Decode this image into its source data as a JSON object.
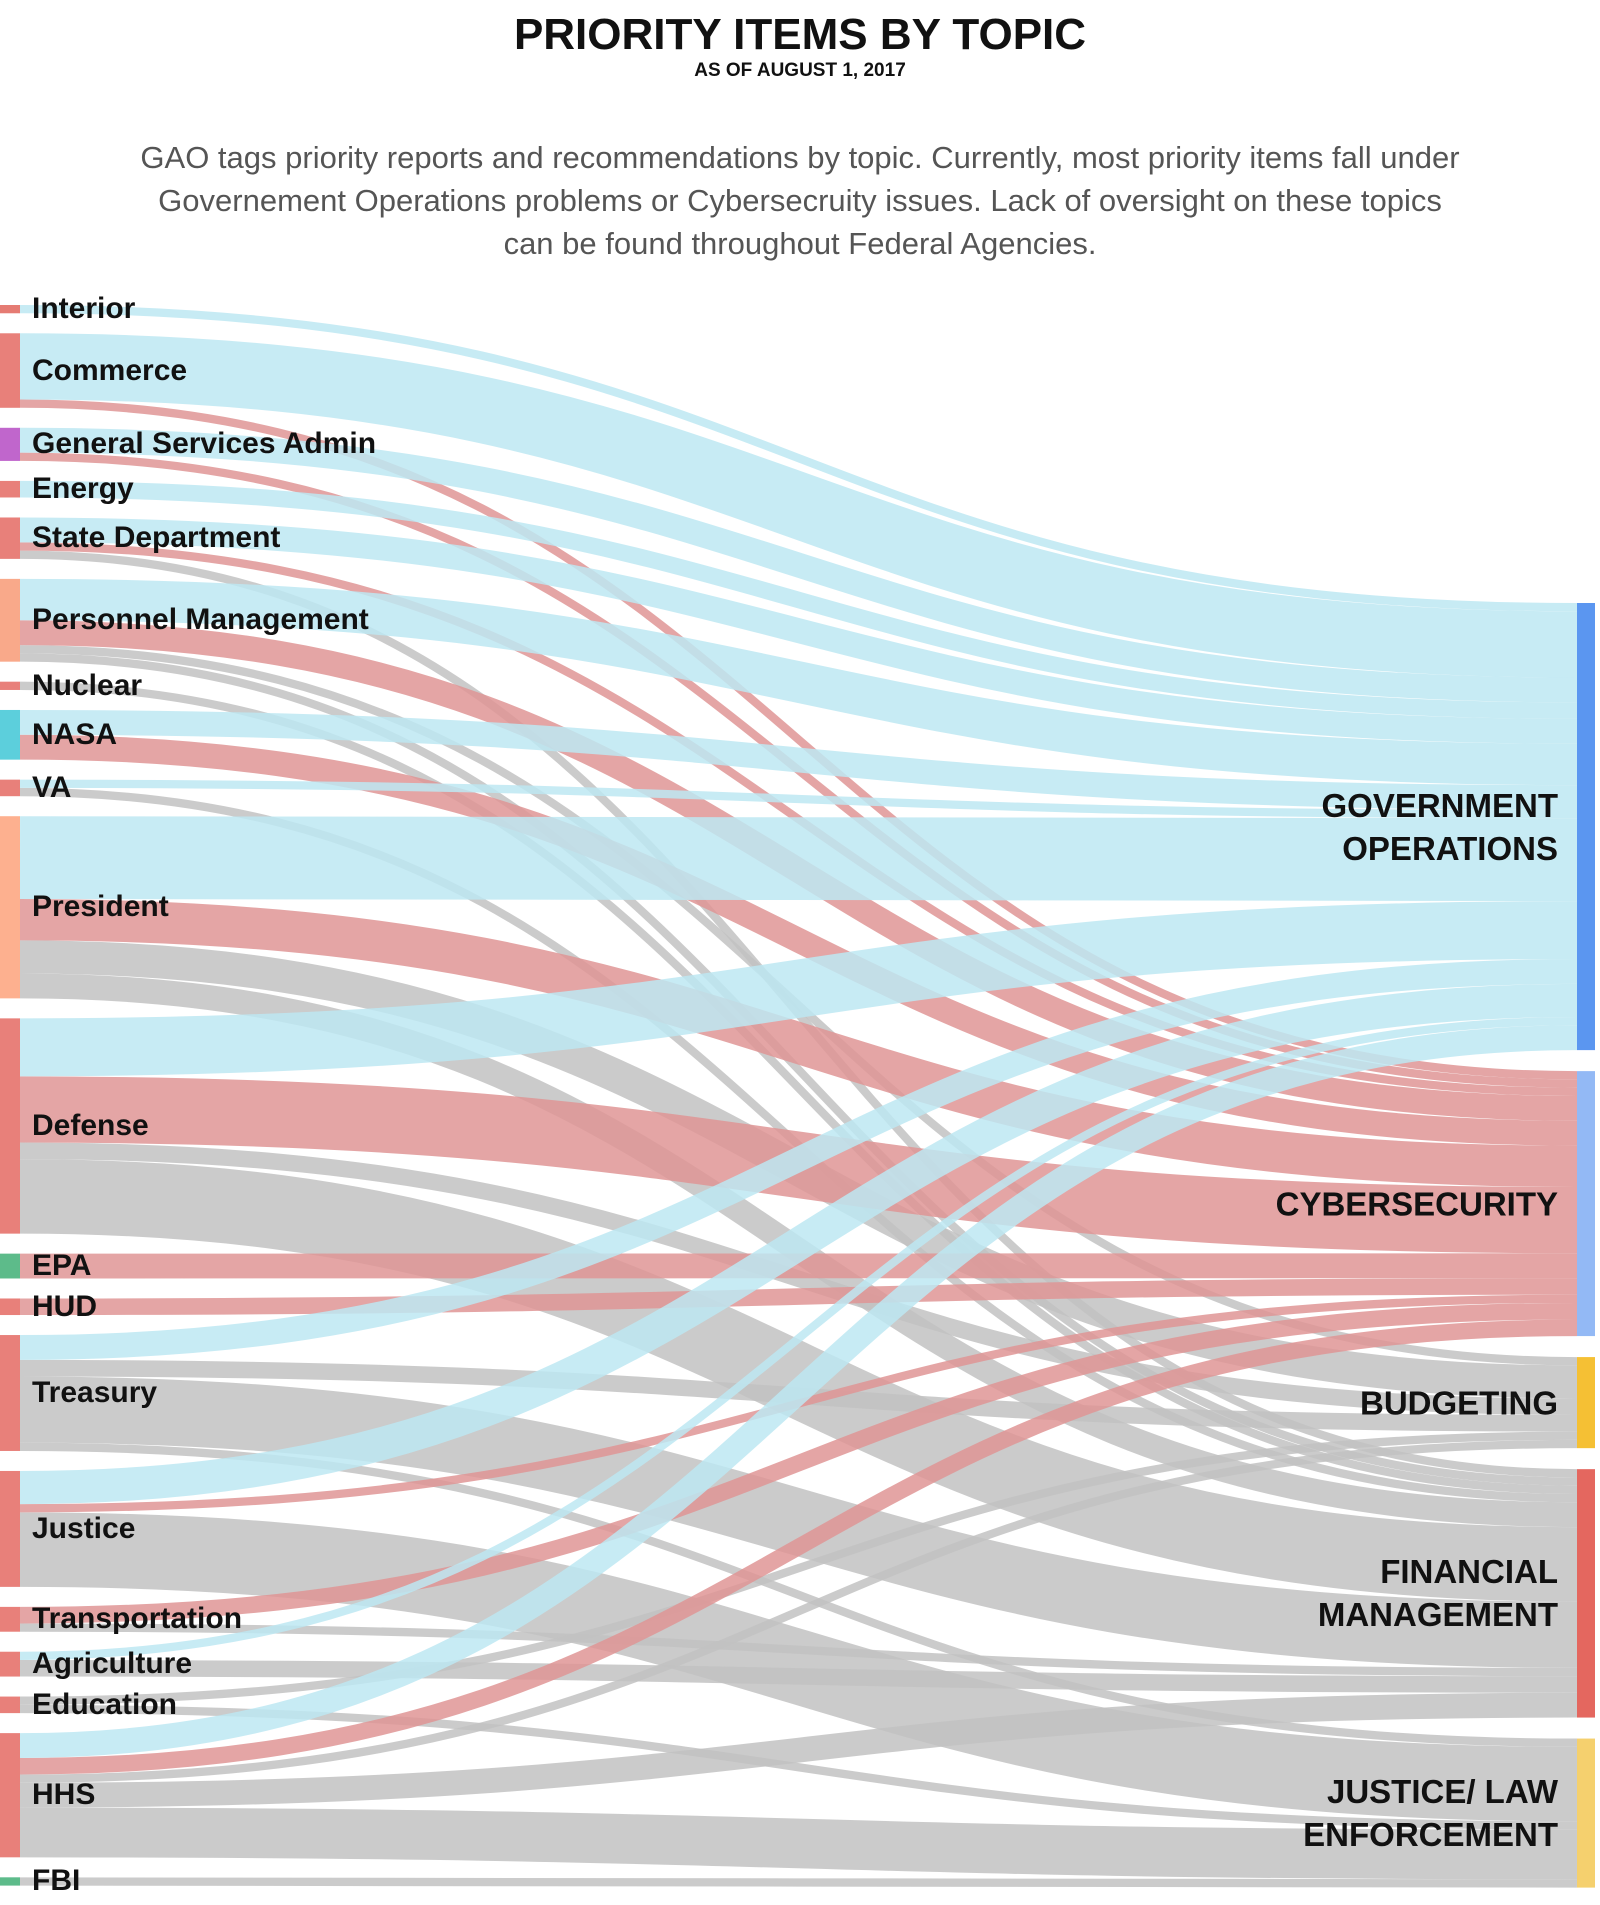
{
  "chart_data": {
    "type": "sankey",
    "title": "PRIORITY ITEMS BY TOPIC",
    "subtitle": "AS OF AUGUST 1, 2017",
    "description": "GAO tags priority reports and recommendations by topic. Currently, most priority items fall under Governement Operations problems or Cybersecruity issues. Lack of oversight on these topics can be found throughout Federal Agencies.",
    "agencies": [
      {
        "name": "Interior",
        "color": "#e57b73"
      },
      {
        "name": "Commerce",
        "color": "#e8807a"
      },
      {
        "name": "General Services Admin",
        "color": "#c066cc"
      },
      {
        "name": "Energy",
        "color": "#e8807a"
      },
      {
        "name": "State Department",
        "color": "#e8807a"
      },
      {
        "name": "Personnel Management",
        "color": "#f9a98a"
      },
      {
        "name": "Nuclear",
        "color": "#e8807a"
      },
      {
        "name": "NASA",
        "color": "#5ccfdc"
      },
      {
        "name": "VA",
        "color": "#e8807a"
      },
      {
        "name": "President",
        "color": "#fdb08f"
      },
      {
        "name": "Defense",
        "color": "#e8807a"
      },
      {
        "name": "EPA",
        "color": "#5dbb8a"
      },
      {
        "name": "HUD",
        "color": "#e8807a"
      },
      {
        "name": "Treasury",
        "color": "#e8807a"
      },
      {
        "name": "Justice",
        "color": "#e8807a"
      },
      {
        "name": "Transportation",
        "color": "#e8807a"
      },
      {
        "name": "Agriculture",
        "color": "#e8807a"
      },
      {
        "name": "Education",
        "color": "#e8807a"
      },
      {
        "name": "HHS",
        "color": "#e8807a"
      },
      {
        "name": "FBI",
        "color": "#5dbb8a"
      }
    ],
    "topics": [
      {
        "name": "GOVERNMENT OPERATIONS",
        "color": "#5b96f0",
        "link_color": "#bde8f2"
      },
      {
        "name": "CYBERSECURITY",
        "color": "#93b9f5",
        "link_color": "#df9595"
      },
      {
        "name": "BUDGETING",
        "color": "#f5c034",
        "link_color": "#c2c2c2"
      },
      {
        "name": "FINANCIAL MANAGEMENT",
        "color": "#e4675f",
        "link_color": "#c2c2c2"
      },
      {
        "name": "JUSTICE/ LAW ENFORCEMENT",
        "color": "#f5d06e",
        "link_color": "#c2c2c2"
      }
    ],
    "links": [
      {
        "source": "Interior",
        "target": "GOVERNMENT OPERATIONS",
        "value": 1
      },
      {
        "source": "Commerce",
        "target": "GOVERNMENT OPERATIONS",
        "value": 8
      },
      {
        "source": "Commerce",
        "target": "CYBERSECURITY",
        "value": 1
      },
      {
        "source": "General Services Admin",
        "target": "GOVERNMENT OPERATIONS",
        "value": 3
      },
      {
        "source": "General Services Admin",
        "target": "CYBERSECURITY",
        "value": 1
      },
      {
        "source": "Energy",
        "target": "GOVERNMENT OPERATIONS",
        "value": 2
      },
      {
        "source": "State Department",
        "target": "GOVERNMENT OPERATIONS",
        "value": 3
      },
      {
        "source": "State Department",
        "target": "CYBERSECURITY",
        "value": 1
      },
      {
        "source": "State Department",
        "target": "FINANCIAL MANAGEMENT",
        "value": 1
      },
      {
        "source": "Personnel Management",
        "target": "GOVERNMENT OPERATIONS",
        "value": 5
      },
      {
        "source": "Personnel Management",
        "target": "CYBERSECURITY",
        "value": 3
      },
      {
        "source": "Personnel Management",
        "target": "BUDGETING",
        "value": 1
      },
      {
        "source": "Personnel Management",
        "target": "FINANCIAL MANAGEMENT",
        "value": 1
      },
      {
        "source": "Nuclear",
        "target": "FINANCIAL MANAGEMENT",
        "value": 1
      },
      {
        "source": "NASA",
        "target": "GOVERNMENT OPERATIONS",
        "value": 3
      },
      {
        "source": "NASA",
        "target": "CYBERSECURITY",
        "value": 3
      },
      {
        "source": "VA",
        "target": "GOVERNMENT OPERATIONS",
        "value": 1
      },
      {
        "source": "VA",
        "target": "FINANCIAL MANAGEMENT",
        "value": 1
      },
      {
        "source": "President",
        "target": "GOVERNMENT OPERATIONS",
        "value": 10
      },
      {
        "source": "President",
        "target": "CYBERSECURITY",
        "value": 5
      },
      {
        "source": "President",
        "target": "BUDGETING",
        "value": 4
      },
      {
        "source": "President",
        "target": "FINANCIAL MANAGEMENT",
        "value": 3
      },
      {
        "source": "Defense",
        "target": "GOVERNMENT OPERATIONS",
        "value": 7
      },
      {
        "source": "Defense",
        "target": "CYBERSECURITY",
        "value": 8
      },
      {
        "source": "Defense",
        "target": "BUDGETING",
        "value": 2
      },
      {
        "source": "Defense",
        "target": "FINANCIAL MANAGEMENT",
        "value": 9
      },
      {
        "source": "EPA",
        "target": "CYBERSECURITY",
        "value": 3
      },
      {
        "source": "HUD",
        "target": "CYBERSECURITY",
        "value": 2
      },
      {
        "source": "Treasury",
        "target": "GOVERNMENT OPERATIONS",
        "value": 3
      },
      {
        "source": "Treasury",
        "target": "BUDGETING",
        "value": 2
      },
      {
        "source": "Treasury",
        "target": "FINANCIAL MANAGEMENT",
        "value": 8
      },
      {
        "source": "Treasury",
        "target": "JUSTICE/ LAW ENFORCEMENT",
        "value": 1
      },
      {
        "source": "Justice",
        "target": "GOVERNMENT OPERATIONS",
        "value": 4
      },
      {
        "source": "Justice",
        "target": "CYBERSECURITY",
        "value": 1
      },
      {
        "source": "Justice",
        "target": "JUSTICE/ LAW ENFORCEMENT",
        "value": 9
      },
      {
        "source": "Transportation",
        "target": "CYBERSECURITY",
        "value": 2
      },
      {
        "source": "Transportation",
        "target": "FINANCIAL MANAGEMENT",
        "value": 1
      },
      {
        "source": "Agriculture",
        "target": "GOVERNMENT OPERATIONS",
        "value": 1
      },
      {
        "source": "Agriculture",
        "target": "FINANCIAL MANAGEMENT",
        "value": 2
      },
      {
        "source": "Education",
        "target": "BUDGETING",
        "value": 1
      },
      {
        "source": "Education",
        "target": "JUSTICE/ LAW ENFORCEMENT",
        "value": 1
      },
      {
        "source": "HHS",
        "target": "GOVERNMENT OPERATIONS",
        "value": 3
      },
      {
        "source": "HHS",
        "target": "CYBERSECURITY",
        "value": 2
      },
      {
        "source": "HHS",
        "target": "BUDGETING",
        "value": 1
      },
      {
        "source": "HHS",
        "target": "FINANCIAL MANAGEMENT",
        "value": 3
      },
      {
        "source": "HHS",
        "target": "JUSTICE/ LAW ENFORCEMENT",
        "value": 6
      },
      {
        "source": "FBI",
        "target": "JUSTICE/ LAW ENFORCEMENT",
        "value": 1
      }
    ]
  }
}
